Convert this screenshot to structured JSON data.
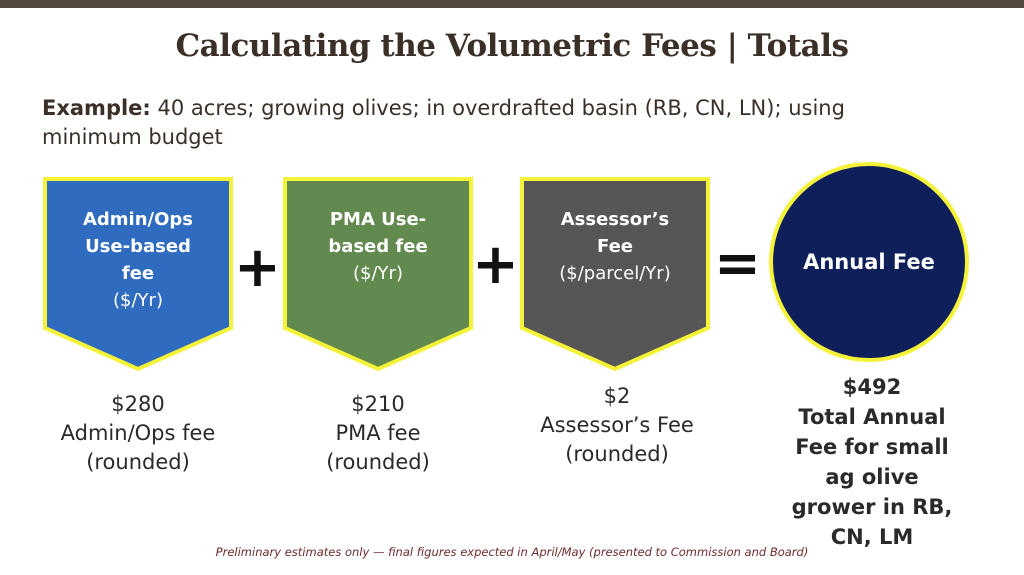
{
  "title": "Calculating the Volumetric Fees | Totals",
  "example": {
    "label": "Example:",
    "text": " 40 acres; growing olives; in overdrafted basin (RB, CN, LN); using minimum budget"
  },
  "boxes": [
    {
      "title": "Admin/Ops Use-based fee",
      "unit": "($/Yr)",
      "color": "#2f6cbf",
      "amount": "$280",
      "desc": "Admin/Ops fee",
      "note": "(rounded)"
    },
    {
      "title": "PMA Use-based fee",
      "unit": "($/Yr)",
      "color": "#62894e",
      "amount": "$210",
      "desc": "PMA fee",
      "note": "(rounded)"
    },
    {
      "title": "Assessor’s Fee",
      "unit": "($/parcel/Yr)",
      "color": "#565656",
      "amount": "$2",
      "desc": "Assessor’s Fee",
      "note": "(rounded)"
    }
  ],
  "operators": {
    "plus": "+",
    "equals": "="
  },
  "result": {
    "label": "Annual Fee",
    "amount": "$492",
    "desc": "Total Annual Fee for small ag olive grower in RB, CN, LM",
    "color": "#0e1f5a"
  },
  "border_color": "#f5f23a",
  "footer": "Preliminary estimates only — final figures expected in April/May (presented to Commission and Board)"
}
